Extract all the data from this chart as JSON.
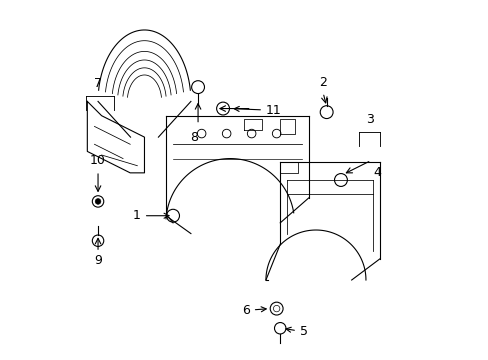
{
  "background_color": "#ffffff",
  "line_color": "#000000",
  "label_color": "#000000",
  "fig_width": 4.89,
  "fig_height": 3.6,
  "dpi": 100
}
